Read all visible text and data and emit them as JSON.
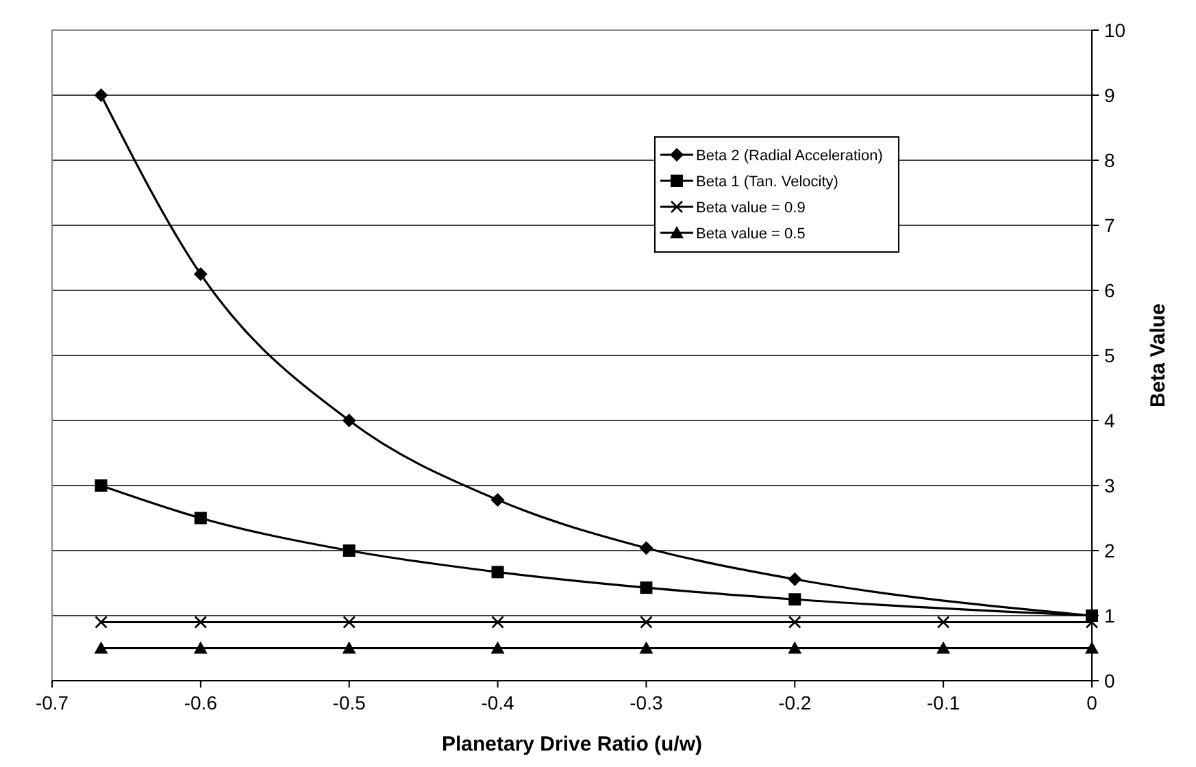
{
  "chart_data": {
    "type": "line",
    "xlabel": "Planetary Drive Ratio (u/w)",
    "ylabel": "Beta Value",
    "xlim": [
      -0.7,
      0
    ],
    "xticks": [
      -0.7,
      -0.6,
      -0.5,
      -0.4,
      -0.3,
      -0.2,
      -0.1,
      0
    ],
    "ylim": [
      0,
      10
    ],
    "yticks": [
      0,
      1,
      2,
      3,
      4,
      5,
      6,
      7,
      8,
      9,
      10
    ],
    "grid": "y",
    "legend": "top right",
    "series": [
      {
        "name": "Beta 2 (Radial Acceleration)",
        "color": "#000000",
        "marker": "diamond",
        "x": [
          -0.667,
          -0.6,
          -0.5,
          -0.4,
          -0.3,
          -0.2,
          0
        ],
        "values": [
          9,
          6.25,
          4,
          2.78,
          2.04,
          1.56,
          1
        ]
      },
      {
        "name": "Beta 1 (Tan. Velocity)",
        "color": "#000000",
        "marker": "square",
        "x": [
          -0.667,
          -0.6,
          -0.5,
          -0.4,
          -0.3,
          -0.2,
          0
        ],
        "values": [
          3,
          2.5,
          2,
          1.67,
          1.43,
          1.25,
          1
        ]
      },
      {
        "name": "Beta value = 0.9",
        "color": "#000000",
        "marker": "cross",
        "x": [
          -0.667,
          -0.6,
          -0.5,
          -0.4,
          -0.3,
          -0.2,
          -0.1,
          0
        ],
        "values": [
          0.9,
          0.9,
          0.9,
          0.9,
          0.9,
          0.9,
          0.9,
          0.9
        ]
      },
      {
        "name": "Beta value = 0.5",
        "color": "#000000",
        "marker": "triangle",
        "x": [
          -0.667,
          -0.6,
          -0.5,
          -0.4,
          -0.3,
          -0.2,
          -0.1,
          0
        ],
        "values": [
          0.5,
          0.5,
          0.5,
          0.5,
          0.5,
          0.5,
          0.5,
          0.5
        ]
      }
    ]
  }
}
